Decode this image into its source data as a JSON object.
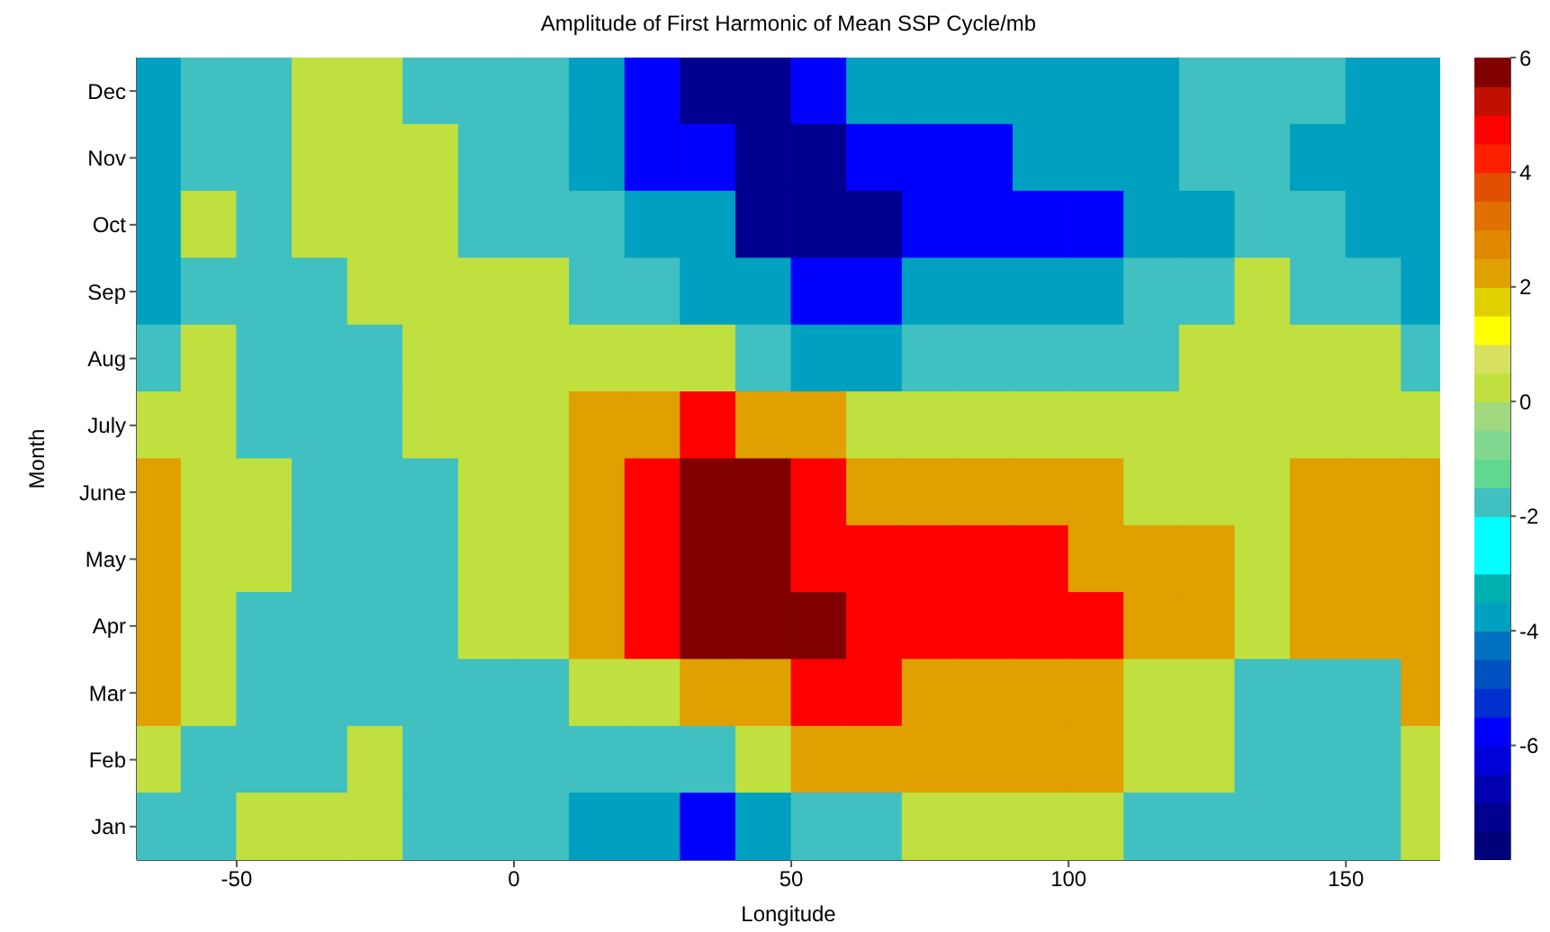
{
  "chart_data": {
    "type": "heatmap",
    "title": "Amplitude of First Harmonic of Mean SSP Cycle/mb",
    "xlabel": "Longitude",
    "ylabel": "Month",
    "x": [
      -65,
      -55,
      -45,
      -35,
      -25,
      -15,
      -5,
      5,
      15,
      25,
      35,
      45,
      55,
      65,
      75,
      85,
      95,
      105,
      115,
      125,
      135,
      145,
      155,
      165
    ],
    "y_categories": [
      "Dec",
      "Nov",
      "Oct",
      "Sep",
      "Aug",
      "July",
      "June",
      "May",
      "Apr",
      "Mar",
      "Feb",
      "Jan"
    ],
    "cells": [
      [
        -4,
        -2,
        -2,
        0,
        0,
        -2,
        -2,
        -2,
        -4,
        -6,
        -7.5,
        -7.5,
        -6,
        -4,
        -4,
        -4,
        -4,
        -4,
        -4,
        -2,
        -2,
        -2,
        -4,
        -4
      ],
      [
        -4,
        -2,
        -2,
        0,
        0,
        0,
        -2,
        -2,
        -4,
        -6,
        -6,
        -7.5,
        -7.5,
        -6,
        -6,
        -6,
        -4,
        -4,
        -4,
        -2,
        -2,
        -4,
        -4,
        -4
      ],
      [
        -4,
        0,
        -2,
        0,
        0,
        0,
        -2,
        -2,
        -2,
        -4,
        -4,
        -7.5,
        -7.5,
        -7.5,
        -6,
        -6,
        -6,
        -6,
        -4,
        -4,
        -2,
        -2,
        -4,
        -4
      ],
      [
        -4,
        -2,
        -2,
        -2,
        0,
        0,
        0,
        0,
        -2,
        -2,
        -4,
        -4,
        -6,
        -6,
        -4,
        -4,
        -4,
        -4,
        -2,
        -2,
        0,
        -2,
        -2,
        -4
      ],
      [
        -2,
        0,
        -2,
        -2,
        -2,
        0,
        0,
        0,
        0,
        0,
        0,
        -2,
        -4,
        -4,
        -2,
        -2,
        -2,
        -2,
        -2,
        0,
        0,
        0,
        0,
        -2
      ],
      [
        0,
        0,
        -2,
        -2,
        -2,
        0,
        0,
        0,
        2,
        2,
        4.5,
        2,
        2,
        0,
        0,
        0,
        0,
        0,
        0,
        0,
        0,
        0,
        0,
        0
      ],
      [
        2,
        0,
        0,
        -2,
        -2,
        -2,
        0,
        0,
        2,
        4.5,
        6,
        6,
        4.5,
        2,
        2,
        2,
        2,
        2,
        0,
        0,
        0,
        2,
        2,
        2
      ],
      [
        2,
        0,
        0,
        -2,
        -2,
        -2,
        0,
        0,
        2,
        4.5,
        6,
        6,
        4.5,
        4.5,
        4.5,
        4.5,
        4.5,
        2,
        2,
        2,
        0,
        2,
        2,
        2
      ],
      [
        2,
        0,
        -2,
        -2,
        -2,
        -2,
        0,
        0,
        2,
        4.5,
        6,
        6,
        6,
        4.5,
        4.5,
        4.5,
        4.5,
        4.5,
        2,
        2,
        0,
        2,
        2,
        2
      ],
      [
        2,
        0,
        -2,
        -2,
        -2,
        -2,
        -2,
        -2,
        0,
        0,
        2,
        2,
        4.5,
        4.5,
        2,
        2,
        2,
        2,
        0,
        0,
        -2,
        -2,
        -2,
        2
      ],
      [
        0,
        -2,
        -2,
        -2,
        0,
        -2,
        -2,
        -2,
        -2,
        -2,
        -2,
        0,
        2,
        2,
        2,
        2,
        2,
        2,
        0,
        0,
        -2,
        -2,
        -2,
        0
      ],
      [
        -2,
        -2,
        0,
        0,
        0,
        -2,
        -2,
        -2,
        -4,
        -4,
        -6,
        -4,
        -2,
        -2,
        0,
        0,
        0,
        0,
        -2,
        -2,
        -2,
        -2,
        -2,
        0
      ]
    ],
    "xlim": [
      -68,
      167
    ],
    "xticks": [
      -50,
      0,
      50,
      100,
      150
    ],
    "clim": [
      -8,
      6
    ],
    "cticks": [
      -6,
      -4,
      -2,
      0,
      2,
      4,
      6
    ]
  }
}
